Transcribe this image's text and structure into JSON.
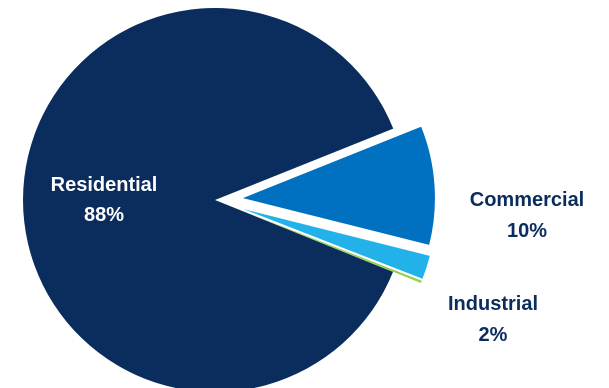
{
  "chart_data": {
    "type": "pie",
    "title": "",
    "categories": [
      "Residential",
      "Commercial",
      "Industrial",
      ""
    ],
    "values": [
      88,
      10,
      2,
      0.2
    ],
    "percent_labels": [
      "88%",
      "10%",
      "2%"
    ],
    "colors": [
      "#0a2d5e",
      "#0070c0",
      "#22b1e8",
      "#92d050"
    ],
    "label_colors": [
      "#ffffff",
      "#0a2d5e",
      "#0a2d5e"
    ],
    "exploded": [
      "Commercial",
      "Industrial"
    ],
    "legend": "none"
  }
}
